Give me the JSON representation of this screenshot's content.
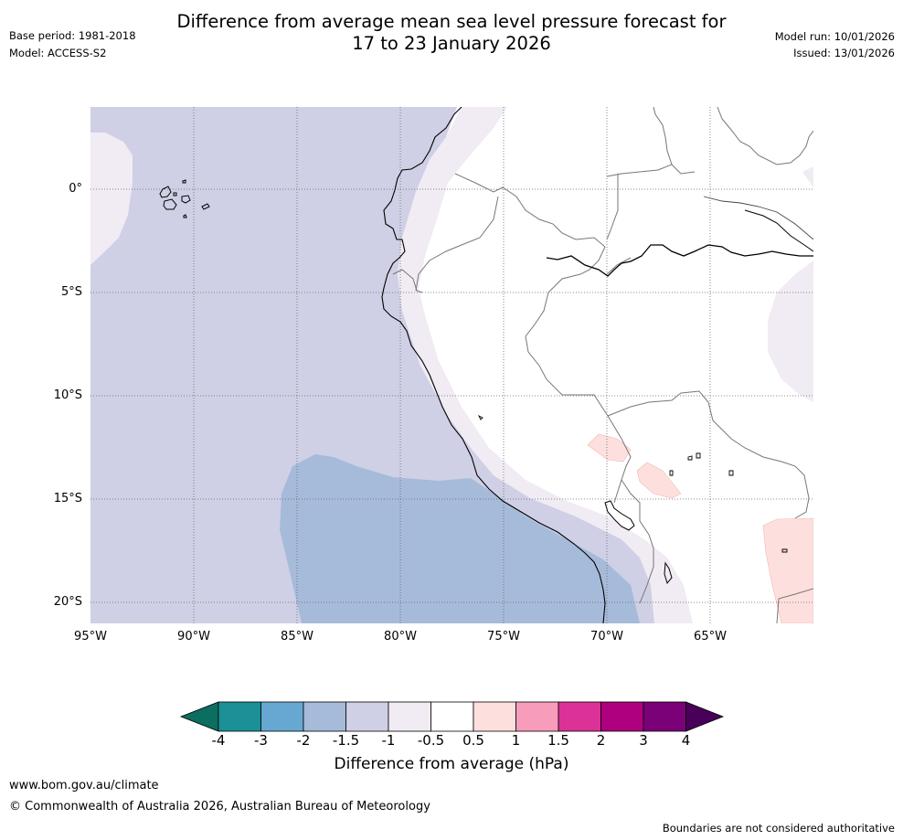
{
  "header": {
    "title_line1": "Difference from average mean sea level pressure forecast for",
    "title_line2": "17 to 23 January 2026",
    "base_period": "Base period: 1981-2018",
    "model": "Model: ACCESS-S2",
    "model_run": "Model run: 10/01/2026",
    "issued": "Issued: 13/01/2026"
  },
  "map": {
    "lat_labels": [
      "0°",
      "5°S",
      "10°S",
      "15°S",
      "20°S"
    ],
    "lon_labels": [
      "95°W",
      "90°W",
      "85°W",
      "80°W",
      "75°W",
      "70°W",
      "65°W"
    ]
  },
  "colorbar": {
    "label": "Difference from average (hPa)",
    "ticks": [
      "-4",
      "-3",
      "-2",
      "-1.5",
      "-1",
      "-0.5",
      "0.5",
      "1",
      "1.5",
      "2",
      "3",
      "4"
    ],
    "colors": {
      "below_min": "#0b6e60",
      "b1": "#1b9097",
      "b2": "#67a8d2",
      "b3": "#a6bbda",
      "b4": "#cfd0e5",
      "b5": "#f1ebf3",
      "b6": "#ffffff",
      "b7": "#fde0de",
      "b8": "#f89cbb",
      "b9": "#dc3297",
      "b10": "#ae0180",
      "b11": "#7a0177",
      "above_max": "#490059"
    }
  },
  "footer": {
    "url": "www.bom.gov.au/climate",
    "copyright": "© Commonwealth of Australia 2026, Australian Bureau of Meteorology",
    "disclaimer": "Boundaries are not considered authoritative"
  }
}
